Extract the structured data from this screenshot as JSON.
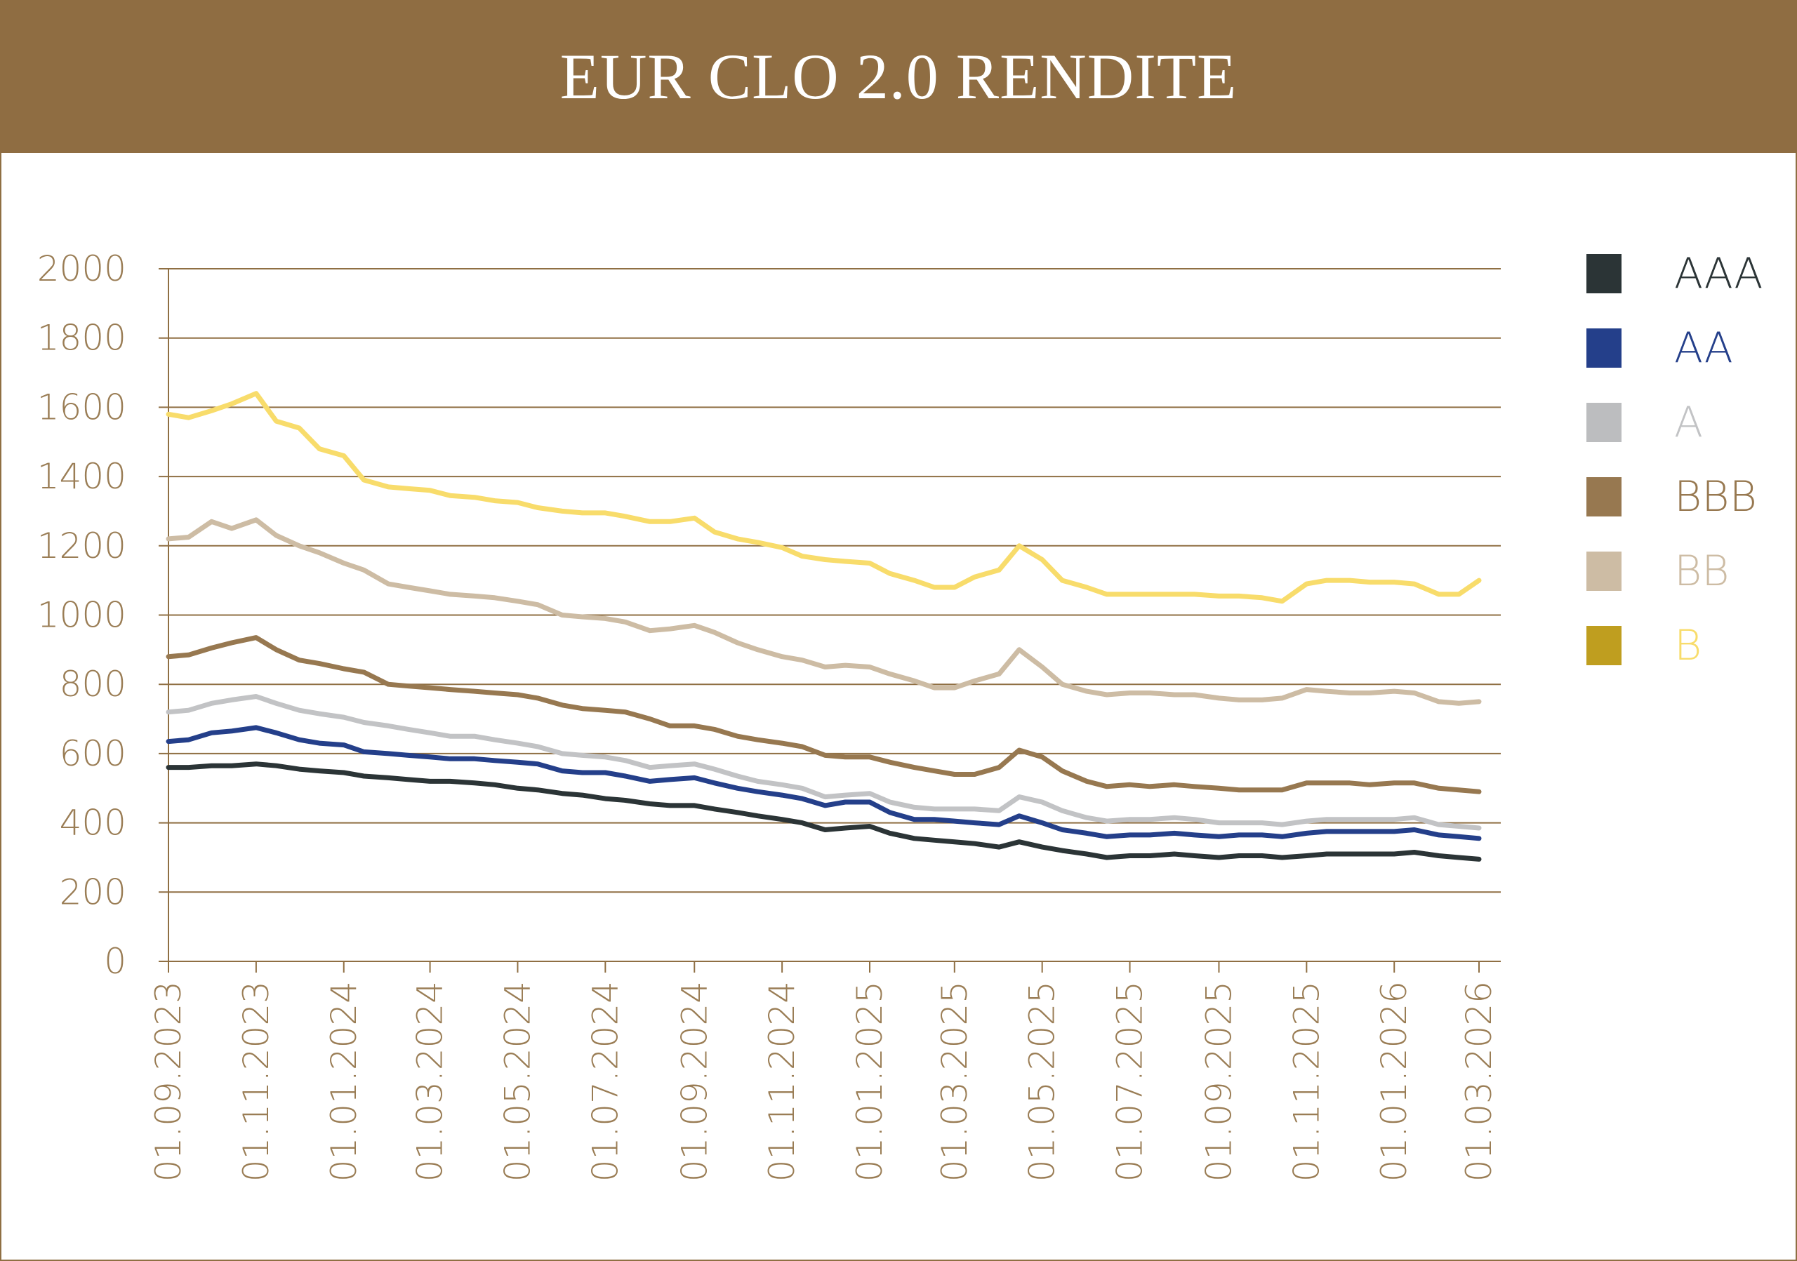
{
  "header": {
    "title": "EUR CLO 2.0 RENDITE"
  },
  "colors": {
    "header_bg": "#8f6d42",
    "axis": "#8f6f43",
    "tick_text": "#9a7d55"
  },
  "chart_data": {
    "type": "line",
    "title": "EUR CLO 2.0 RENDITE",
    "xlabel": "",
    "ylabel": "",
    "ylim": [
      0,
      2000
    ],
    "y_ticks": [
      "0",
      "200",
      "400",
      "600",
      "800",
      "1000",
      "1200",
      "1400",
      "1600",
      "1800",
      "2000"
    ],
    "x_range": [
      "2023-09-01",
      "2026-03-01"
    ],
    "x_ticks": [
      "01.09.2023",
      "01.11.2023",
      "01.01.2024",
      "01.03.2024",
      "01.05.2024",
      "01.07.2024",
      "01.09.2024",
      "01.11.2024",
      "01.01.2025",
      "01.03.2025",
      "01.05.2025",
      "01.07.2025",
      "01.09.2025",
      "01.11.2025",
      "01.01.2026",
      "01.03.2026"
    ],
    "grid": "horizontal",
    "legend_position": "right",
    "x": [
      "2023-09-01",
      "2023-09-15",
      "2023-10-01",
      "2023-10-15",
      "2023-11-01",
      "2023-11-15",
      "2023-12-01",
      "2023-12-15",
      "2024-01-01",
      "2024-01-15",
      "2024-02-01",
      "2024-02-15",
      "2024-03-01",
      "2024-03-15",
      "2024-04-01",
      "2024-04-15",
      "2024-05-01",
      "2024-05-15",
      "2024-06-01",
      "2024-06-15",
      "2024-07-01",
      "2024-07-15",
      "2024-08-01",
      "2024-08-15",
      "2024-09-01",
      "2024-09-15",
      "2024-10-01",
      "2024-10-15",
      "2024-11-01",
      "2024-11-15",
      "2024-12-01",
      "2024-12-15",
      "2025-01-01",
      "2025-01-15",
      "2025-02-01",
      "2025-02-15",
      "2025-03-01",
      "2025-03-15",
      "2025-04-01",
      "2025-04-15",
      "2025-05-01",
      "2025-05-15",
      "2025-06-01",
      "2025-06-15",
      "2025-07-01",
      "2025-07-15",
      "2025-08-01",
      "2025-08-15",
      "2025-09-01",
      "2025-09-15",
      "2025-10-01",
      "2025-10-15",
      "2025-11-01",
      "2025-11-15",
      "2025-12-01",
      "2025-12-15",
      "2026-01-01",
      "2026-01-15",
      "2026-02-01",
      "2026-02-15",
      "2026-03-01"
    ],
    "series": [
      {
        "name": "AAA",
        "color": "#2b3436",
        "legend_color": "#2b3436",
        "values": [
          560,
          560,
          565,
          565,
          570,
          565,
          555,
          550,
          545,
          535,
          530,
          525,
          520,
          520,
          515,
          510,
          500,
          495,
          485,
          480,
          470,
          465,
          455,
          450,
          450,
          440,
          430,
          420,
          410,
          400,
          380,
          385,
          390,
          370,
          355,
          350,
          345,
          340,
          330,
          345,
          330,
          320,
          310,
          300,
          305,
          305,
          310,
          305,
          300,
          305,
          305,
          300,
          305,
          310,
          310,
          310,
          310,
          315,
          305,
          300,
          295
        ]
      },
      {
        "name": "AA",
        "color": "#243f8a",
        "legend_color": "#243f8a",
        "values": [
          635,
          640,
          660,
          665,
          675,
          660,
          640,
          630,
          625,
          605,
          600,
          595,
          590,
          585,
          585,
          580,
          575,
          570,
          550,
          545,
          545,
          535,
          520,
          525,
          530,
          515,
          500,
          490,
          480,
          470,
          450,
          460,
          460,
          430,
          410,
          410,
          405,
          400,
          395,
          420,
          400,
          380,
          370,
          360,
          365,
          365,
          370,
          365,
          360,
          365,
          365,
          360,
          370,
          375,
          375,
          375,
          375,
          380,
          365,
          360,
          355
        ]
      },
      {
        "name": "A",
        "color": "#c2c3c5",
        "legend_color": "#bcbdbf",
        "values": [
          720,
          725,
          745,
          755,
          765,
          745,
          725,
          715,
          705,
          690,
          680,
          670,
          660,
          650,
          650,
          640,
          630,
          620,
          600,
          595,
          590,
          580,
          560,
          565,
          570,
          555,
          535,
          520,
          510,
          500,
          475,
          480,
          485,
          460,
          445,
          440,
          440,
          440,
          435,
          475,
          460,
          435,
          415,
          405,
          410,
          410,
          415,
          410,
          400,
          400,
          400,
          395,
          405,
          410,
          410,
          410,
          410,
          415,
          395,
          390,
          385
        ]
      },
      {
        "name": "BBB",
        "color": "#977850",
        "legend_color": "#977850",
        "values": [
          880,
          885,
          905,
          920,
          935,
          900,
          870,
          860,
          845,
          835,
          800,
          795,
          790,
          785,
          780,
          775,
          770,
          760,
          740,
          730,
          725,
          720,
          700,
          680,
          680,
          670,
          650,
          640,
          630,
          620,
          595,
          590,
          590,
          575,
          560,
          550,
          540,
          540,
          560,
          610,
          590,
          550,
          520,
          505,
          510,
          505,
          510,
          505,
          500,
          495,
          495,
          495,
          515,
          515,
          515,
          510,
          515,
          515,
          500,
          495,
          490
        ]
      },
      {
        "name": "BB",
        "color": "#cdbca4",
        "legend_color": "#cdbca4",
        "values": [
          1220,
          1225,
          1270,
          1250,
          1275,
          1230,
          1200,
          1180,
          1150,
          1130,
          1090,
          1080,
          1070,
          1060,
          1055,
          1050,
          1040,
          1030,
          1000,
          995,
          990,
          980,
          955,
          960,
          970,
          950,
          920,
          900,
          880,
          870,
          850,
          855,
          850,
          830,
          810,
          790,
          790,
          810,
          830,
          900,
          850,
          800,
          780,
          770,
          775,
          775,
          770,
          770,
          760,
          755,
          755,
          760,
          785,
          780,
          775,
          775,
          780,
          775,
          750,
          745,
          750
        ]
      },
      {
        "name": "B",
        "color": "#f8dc6b",
        "legend_color": "#bf9e1f",
        "values": [
          1580,
          1570,
          1590,
          1610,
          1640,
          1560,
          1540,
          1480,
          1460,
          1390,
          1370,
          1365,
          1360,
          1345,
          1340,
          1330,
          1325,
          1310,
          1300,
          1295,
          1295,
          1285,
          1270,
          1270,
          1280,
          1240,
          1220,
          1210,
          1195,
          1170,
          1160,
          1155,
          1150,
          1120,
          1100,
          1080,
          1080,
          1110,
          1130,
          1200,
          1160,
          1100,
          1080,
          1060,
          1060,
          1060,
          1060,
          1060,
          1055,
          1055,
          1050,
          1040,
          1090,
          1100,
          1100,
          1095,
          1095,
          1090,
          1060,
          1060,
          1100
        ]
      }
    ]
  }
}
